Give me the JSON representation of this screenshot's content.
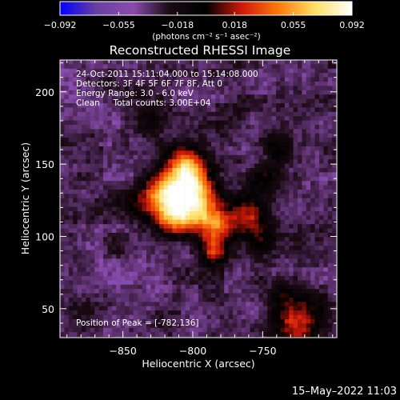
{
  "chart_data": {
    "type": "heatmap",
    "title": "Reconstructed RHESSI Image",
    "xlabel": "Heliocentric X (arcsec)",
    "ylabel": "Heliocentric Y (arcsec)",
    "xlim": [
      -895,
      -697
    ],
    "ylim": [
      30,
      222
    ],
    "x_ticks": [
      -850,
      -800,
      -750
    ],
    "x_tick_labels": [
      "−850",
      "−800",
      "−750"
    ],
    "y_ticks": [
      50,
      100,
      150,
      200
    ],
    "y_tick_labels": [
      "50",
      "100",
      "150",
      "200"
    ],
    "colorbar": {
      "min": -0.092,
      "max": 0.092,
      "ticks": [
        -0.092,
        -0.055,
        -0.018,
        0.018,
        0.055,
        0.092
      ],
      "tick_labels": [
        "−0.092",
        "−0.055",
        "−0.018",
        "0.018",
        "0.055",
        "0.092"
      ],
      "unit_label": "(photons cm⁻² s⁻¹ asec⁻²)"
    },
    "colormap_stops": [
      "#0000ff",
      "#6a3fa0",
      "#8a4cae",
      "#1a0a12",
      "#000000",
      "#d11a0a",
      "#ff7a0a",
      "#ffe066",
      "#ffffff"
    ],
    "annotations": [
      "24-Oct-2011 15:11:04.000 to 15:14:08.000",
      "Detectors: 3F 4F 5F 6F 7F 8F, Att 0",
      "Energy Range: 3.0 - 6.0 keV",
      "Clean     Total counts: 3.00E+04"
    ],
    "peak_label": "Position of Peak = [-782,136]",
    "sources": [
      {
        "x": -820,
        "y": 130,
        "sigma": 11,
        "amp": 0.09
      },
      {
        "x": -800,
        "y": 132,
        "sigma": 12,
        "amp": 0.085
      },
      {
        "x": -805,
        "y": 148,
        "sigma": 9,
        "amp": 0.07
      },
      {
        "x": -815,
        "y": 112,
        "sigma": 9,
        "amp": 0.06
      },
      {
        "x": -783,
        "y": 108,
        "sigma": 8,
        "amp": 0.075
      },
      {
        "x": -785,
        "y": 90,
        "sigma": 7,
        "amp": 0.06
      },
      {
        "x": -798,
        "y": 116,
        "sigma": 10,
        "amp": 0.05
      },
      {
        "x": -760,
        "y": 115,
        "sigma": 10,
        "amp": 0.045
      },
      {
        "x": -748,
        "y": 140,
        "sigma": 8,
        "amp": 0.035
      },
      {
        "x": -752,
        "y": 95,
        "sigma": 8,
        "amp": 0.03
      },
      {
        "x": -740,
        "y": 160,
        "sigma": 7,
        "amp": 0.03
      },
      {
        "x": -843,
        "y": 125,
        "sigma": 8,
        "amp": 0.03
      },
      {
        "x": -725,
        "y": 42,
        "sigma": 12,
        "amp": 0.06
      },
      {
        "x": -830,
        "y": 178,
        "sigma": 7,
        "amp": 0.022
      },
      {
        "x": -855,
        "y": 95,
        "sigma": 6,
        "amp": 0.015
      },
      {
        "x": -870,
        "y": 168,
        "sigma": 5,
        "amp": 0.012
      },
      {
        "x": -735,
        "y": 60,
        "sigma": 6,
        "amp": 0.02
      },
      {
        "x": -840,
        "y": 200,
        "sigma": 6,
        "amp": 0.012
      },
      {
        "x": -880,
        "y": 45,
        "sigma": 6,
        "amp": 0.012
      }
    ]
  },
  "footer": {
    "timestamp": "15–May–2022 11:03"
  }
}
